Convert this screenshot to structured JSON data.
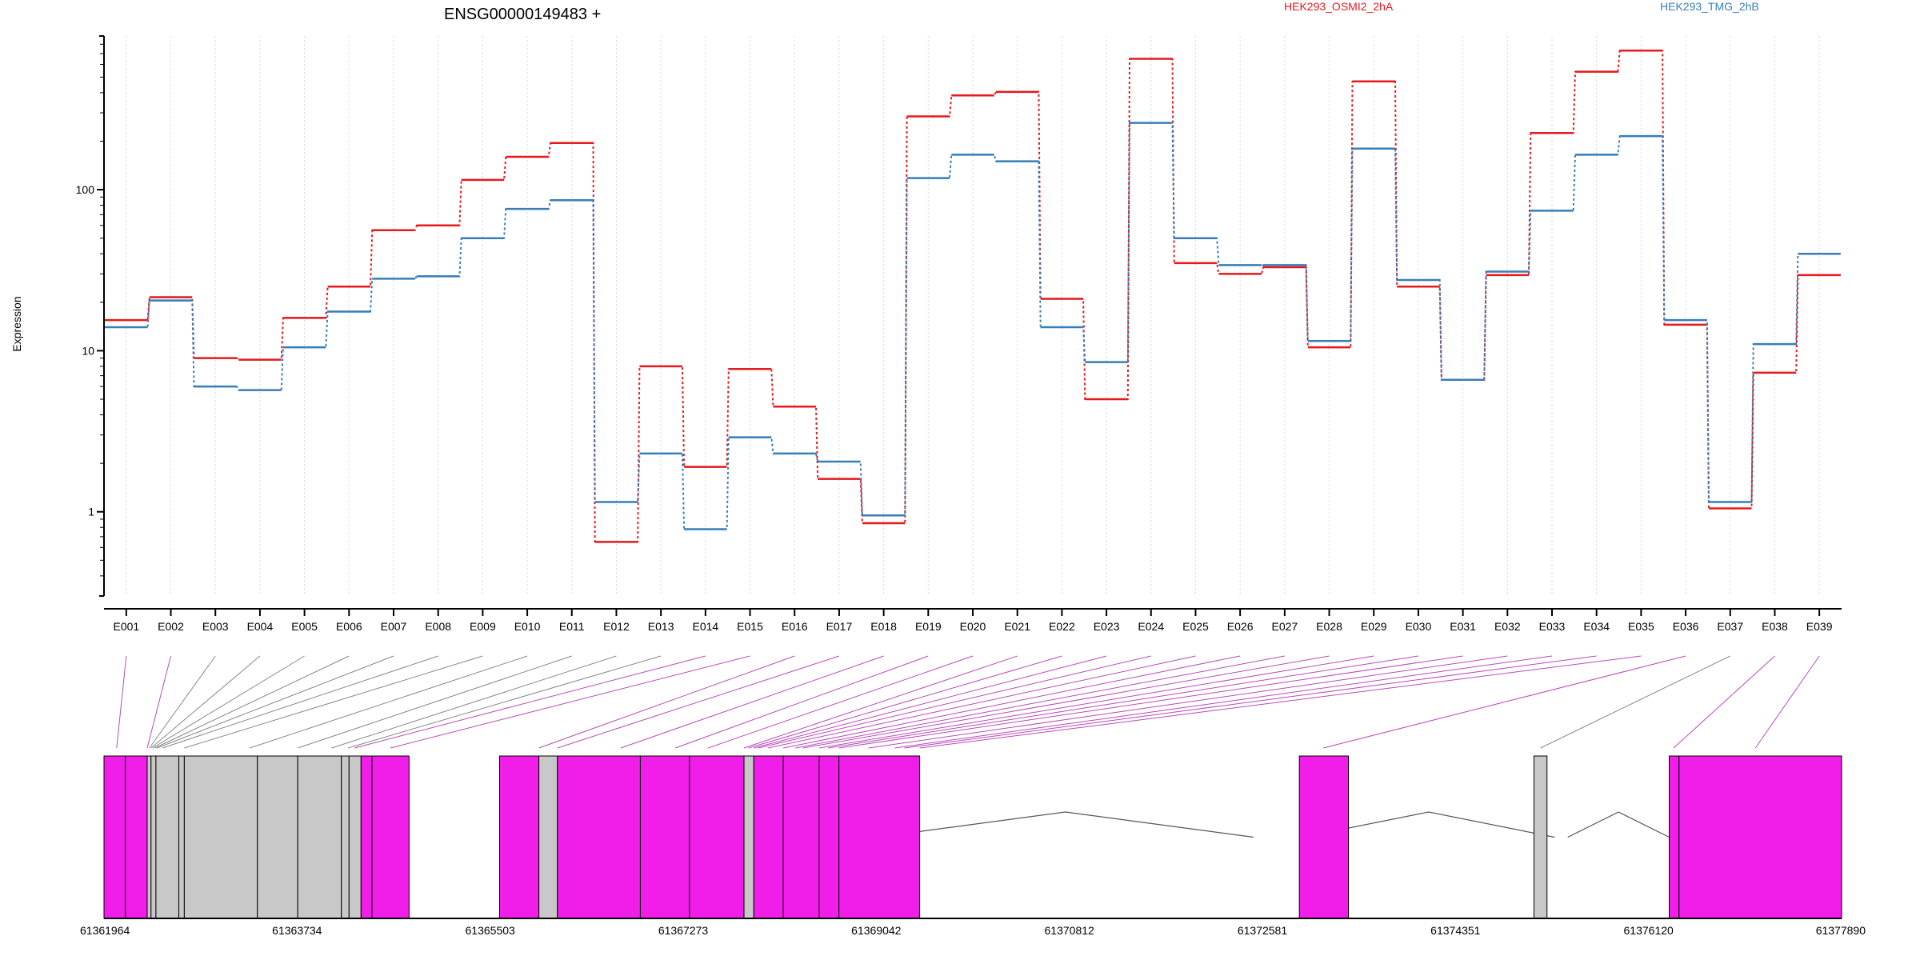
{
  "chart_data": {
    "type": "line",
    "title": "ENSG00000149483 +",
    "ylabel": "Expression",
    "xlabel": "",
    "y_scale": "log",
    "y_ticks": [
      1,
      10,
      100
    ],
    "ylim": [
      0.3,
      900
    ],
    "grid": "vertical dotted lines at each exon",
    "legend_position": "top",
    "colors": {
      "series_a": "#e41a1c",
      "series_b": "#377eb8",
      "exonic_part": "#f01ee8",
      "non_exonic_part": "#c8c8c8",
      "intron": "#555555"
    },
    "categories": [
      "E001",
      "E002",
      "E003",
      "E004",
      "E005",
      "E006",
      "E007",
      "E008",
      "E009",
      "E010",
      "E011",
      "E012",
      "E013",
      "E014",
      "E015",
      "E016",
      "E017",
      "E018",
      "E019",
      "E020",
      "E021",
      "E022",
      "E023",
      "E024",
      "E025",
      "E026",
      "E027",
      "E028",
      "E029",
      "E030",
      "E031",
      "E032",
      "E033",
      "E034",
      "E035",
      "E036",
      "E037",
      "E038",
      "E039"
    ],
    "series": [
      {
        "name": "HEK293_OSMI2_2hA",
        "color": "#e41a1c",
        "values": [
          15.5,
          21.5,
          9,
          8.8,
          16,
          25,
          56,
          60,
          115,
          160,
          195,
          0.65,
          8,
          1.9,
          7.7,
          4.5,
          1.6,
          0.85,
          285,
          385,
          405,
          21,
          5,
          650,
          35,
          30,
          33,
          10.5,
          470,
          25,
          6.6,
          29.5,
          225,
          540,
          730,
          14.5,
          1.05,
          7.3,
          29.5
        ]
      },
      {
        "name": "HEK293_TMG_2hB",
        "color": "#377eb8",
        "values": [
          14,
          20.5,
          6,
          5.7,
          10.5,
          17.5,
          28,
          29,
          50,
          76,
          86,
          1.15,
          2.3,
          0.78,
          2.9,
          2.3,
          2.05,
          0.95,
          118,
          165,
          150,
          14,
          8.5,
          260,
          50,
          34,
          34,
          11.5,
          180,
          27.5,
          6.6,
          31,
          74,
          165,
          215,
          15.5,
          1.15,
          11,
          40
        ]
      }
    ],
    "gene_model": {
      "coordinate_labels": [
        "61361964",
        "61363734",
        "61365503",
        "61367273",
        "61369042",
        "61370812",
        "61372581",
        "61374351",
        "61376120",
        "61377890"
      ],
      "coordinate_range": [
        61361964,
        61377890
      ],
      "blocks": [
        {
          "start": 61361964,
          "end": 61363840,
          "type": "exonic"
        },
        {
          "start": 61363840,
          "end": 61365600,
          "type": "exonic"
        },
        {
          "start": 61366480,
          "end": 61369050,
          "type": "exonic"
        },
        {
          "start": 61372500,
          "end": 61372950,
          "type": "exonic"
        },
        {
          "start": 61375260,
          "end": 61375380,
          "type": "non-exonic"
        },
        {
          "start": 61376310,
          "end": 61377890,
          "type": "exonic"
        }
      ],
      "parts": [
        {
          "start": 61361964,
          "end": 61362160,
          "type": "exonic"
        },
        {
          "start": 61362160,
          "end": 61362360,
          "type": "exonic"
        },
        {
          "start": 61362360,
          "end": 61362395,
          "type": "non-exonic"
        },
        {
          "start": 61362395,
          "end": 61362440,
          "type": "non-exonic"
        },
        {
          "start": 61362440,
          "end": 61362650,
          "type": "non-exonic"
        },
        {
          "start": 61362650,
          "end": 61362700,
          "type": "non-exonic"
        },
        {
          "start": 61362700,
          "end": 61363370,
          "type": "non-exonic"
        },
        {
          "start": 61363370,
          "end": 61363740,
          "type": "non-exonic"
        },
        {
          "start": 61363740,
          "end": 61364140,
          "type": "non-exonic"
        },
        {
          "start": 61364140,
          "end": 61364210,
          "type": "non-exonic"
        },
        {
          "start": 61364210,
          "end": 61364320,
          "type": "non-exonic"
        },
        {
          "start": 61364320,
          "end": 61364420,
          "type": "exonic"
        },
        {
          "start": 61364420,
          "end": 61364760,
          "type": "exonic"
        },
        {
          "start": 61365590,
          "end": 61365950,
          "type": "exonic"
        },
        {
          "start": 61365950,
          "end": 61366120,
          "type": "non-exonic"
        },
        {
          "start": 61366120,
          "end": 61366880,
          "type": "exonic"
        },
        {
          "start": 61366880,
          "end": 61367330,
          "type": "exonic"
        },
        {
          "start": 61367330,
          "end": 61367830,
          "type": "exonic"
        },
        {
          "start": 61367830,
          "end": 61367920,
          "type": "non-exonic"
        },
        {
          "start": 61367920,
          "end": 61368190,
          "type": "exonic"
        },
        {
          "start": 61368190,
          "end": 61368520,
          "type": "exonic"
        },
        {
          "start": 61368520,
          "end": 61368700,
          "type": "exonic"
        },
        {
          "start": 61368700,
          "end": 61369440,
          "type": "exonic"
        },
        {
          "start": 61372920,
          "end": 61373370,
          "type": "exonic"
        },
        {
          "start": 61375070,
          "end": 61375190,
          "type": "non-exonic"
        },
        {
          "start": 61376310,
          "end": 61376400,
          "type": "exonic"
        },
        {
          "start": 61376400,
          "end": 61377890,
          "type": "exonic"
        }
      ],
      "connector_targets": [
        61362080,
        61362360,
        61362380,
        61362395,
        61362410,
        61362430,
        61362450,
        61362500,
        61362700,
        61363300,
        61363740,
        61364050,
        61364200,
        61364260,
        61364590,
        61365950,
        61366120,
        61366700,
        61367200,
        61367500,
        61367830,
        61367870,
        61367920,
        61367960,
        61368050,
        61368190,
        61368300,
        61368370,
        61368520,
        61368600,
        61368700,
        61368970,
        61369210,
        61369300,
        61369440,
        61373140,
        61375130,
        61376350,
        61377100
      ],
      "connector_types": [
        "exonic",
        "exonic",
        "non-exonic",
        "non-exonic",
        "non-exonic",
        "non-exonic",
        "non-exonic",
        "non-exonic",
        "non-exonic",
        "non-exonic",
        "non-exonic",
        "non-exonic",
        "non-exonic",
        "exonic",
        "exonic",
        "exonic",
        "exonic",
        "exonic",
        "exonic",
        "exonic",
        "exonic",
        "exonic",
        "exonic",
        "exonic",
        "exonic",
        "exonic",
        "exonic",
        "exonic",
        "exonic",
        "exonic",
        "exonic",
        "exonic",
        "exonic",
        "exonic",
        "exonic",
        "exonic",
        "non-exonic",
        "exonic",
        "exonic"
      ]
    }
  }
}
